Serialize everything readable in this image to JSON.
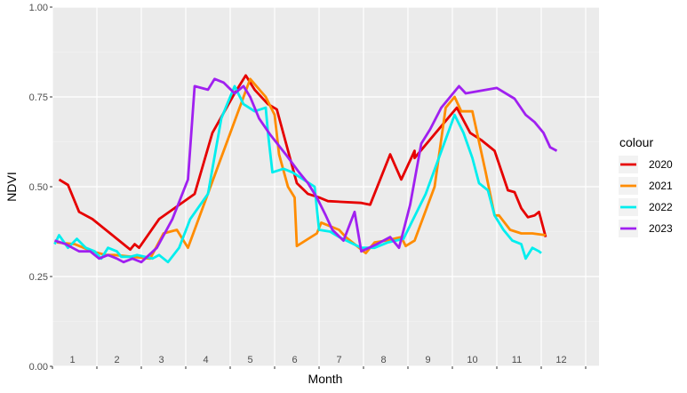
{
  "chart_data": {
    "type": "line",
    "xlabel": "Month",
    "ylabel": "NDVI",
    "ylim": [
      0,
      1
    ],
    "xlim": [
      0,
      12.3
    ],
    "y_ticks": [
      "0.00",
      "0.25",
      "0.50",
      "0.75",
      "1.00"
    ],
    "y_tick_values": [
      0,
      0.25,
      0.5,
      0.75,
      1.0
    ],
    "month_labels": [
      "1",
      "2",
      "3",
      "4",
      "5",
      "6",
      "7",
      "8",
      "9",
      "10",
      "11",
      "12"
    ],
    "grid": true,
    "legend": {
      "title": "colour",
      "position": "right"
    },
    "series": [
      {
        "name": "2020",
        "color": "#e60000",
        "points": [
          [
            0.15,
            0.52
          ],
          [
            0.35,
            0.505
          ],
          [
            0.6,
            0.43
          ],
          [
            0.9,
            0.41
          ],
          [
            1.3,
            0.37
          ],
          [
            1.6,
            0.34
          ],
          [
            1.75,
            0.325
          ],
          [
            1.85,
            0.34
          ],
          [
            1.95,
            0.33
          ],
          [
            2.4,
            0.41
          ],
          [
            3.2,
            0.48
          ],
          [
            3.6,
            0.65
          ],
          [
            4.1,
            0.76
          ],
          [
            4.35,
            0.81
          ],
          [
            4.55,
            0.77
          ],
          [
            4.85,
            0.73
          ],
          [
            5.05,
            0.715
          ],
          [
            5.5,
            0.51
          ],
          [
            5.75,
            0.48
          ],
          [
            6.0,
            0.47
          ],
          [
            6.2,
            0.46
          ],
          [
            6.95,
            0.455
          ],
          [
            7.15,
            0.45
          ],
          [
            7.6,
            0.59
          ],
          [
            7.85,
            0.52
          ],
          [
            8.15,
            0.6
          ],
          [
            8.15,
            0.58
          ],
          [
            9.1,
            0.72
          ],
          [
            9.4,
            0.65
          ],
          [
            9.65,
            0.63
          ],
          [
            9.95,
            0.6
          ],
          [
            10.25,
            0.49
          ],
          [
            10.4,
            0.485
          ],
          [
            10.55,
            0.44
          ],
          [
            10.7,
            0.415
          ],
          [
            10.85,
            0.42
          ],
          [
            10.95,
            0.43
          ],
          [
            11.1,
            0.36
          ]
        ]
      },
      {
        "name": "2021",
        "color": "#ff8c00",
        "points": [
          [
            0.1,
            0.345
          ],
          [
            0.5,
            0.34
          ],
          [
            0.9,
            0.32
          ],
          [
            1.2,
            0.31
          ],
          [
            1.4,
            0.31
          ],
          [
            2.2,
            0.3
          ],
          [
            2.5,
            0.37
          ],
          [
            2.8,
            0.38
          ],
          [
            3.05,
            0.33
          ],
          [
            4.45,
            0.8
          ],
          [
            4.8,
            0.75
          ],
          [
            5.0,
            0.7
          ],
          [
            5.1,
            0.59
          ],
          [
            5.3,
            0.5
          ],
          [
            5.45,
            0.47
          ],
          [
            5.5,
            0.335
          ],
          [
            5.95,
            0.37
          ],
          [
            6.05,
            0.4
          ],
          [
            6.45,
            0.38
          ],
          [
            6.6,
            0.36
          ],
          [
            6.8,
            0.34
          ],
          [
            7.05,
            0.315
          ],
          [
            7.25,
            0.345
          ],
          [
            7.5,
            0.35
          ],
          [
            7.85,
            0.36
          ],
          [
            7.95,
            0.335
          ],
          [
            8.15,
            0.35
          ],
          [
            8.6,
            0.5
          ],
          [
            8.85,
            0.72
          ],
          [
            9.05,
            0.75
          ],
          [
            9.2,
            0.71
          ],
          [
            9.45,
            0.71
          ],
          [
            9.75,
            0.54
          ],
          [
            9.95,
            0.42
          ],
          [
            10.05,
            0.42
          ],
          [
            10.3,
            0.38
          ],
          [
            10.55,
            0.37
          ],
          [
            10.8,
            0.37
          ],
          [
            11.1,
            0.365
          ]
        ]
      },
      {
        "name": "2022",
        "color": "#00eeee",
        "points": [
          [
            0.05,
            0.34
          ],
          [
            0.15,
            0.365
          ],
          [
            0.35,
            0.33
          ],
          [
            0.55,
            0.355
          ],
          [
            0.75,
            0.33
          ],
          [
            0.95,
            0.32
          ],
          [
            1.1,
            0.3
          ],
          [
            1.25,
            0.33
          ],
          [
            1.45,
            0.32
          ],
          [
            1.55,
            0.305
          ],
          [
            1.75,
            0.305
          ],
          [
            1.9,
            0.31
          ],
          [
            2.25,
            0.3
          ],
          [
            2.4,
            0.31
          ],
          [
            2.6,
            0.29
          ],
          [
            2.85,
            0.33
          ],
          [
            3.1,
            0.41
          ],
          [
            3.5,
            0.48
          ],
          [
            3.8,
            0.69
          ],
          [
            4.1,
            0.78
          ],
          [
            4.3,
            0.73
          ],
          [
            4.55,
            0.71
          ],
          [
            4.8,
            0.72
          ],
          [
            4.85,
            0.65
          ],
          [
            4.95,
            0.54
          ],
          [
            5.2,
            0.55
          ],
          [
            5.4,
            0.54
          ],
          [
            5.65,
            0.52
          ],
          [
            5.9,
            0.5
          ],
          [
            6.0,
            0.38
          ],
          [
            6.25,
            0.375
          ],
          [
            6.45,
            0.36
          ],
          [
            6.7,
            0.345
          ],
          [
            6.95,
            0.33
          ],
          [
            7.25,
            0.33
          ],
          [
            7.55,
            0.345
          ],
          [
            7.9,
            0.355
          ],
          [
            8.4,
            0.48
          ],
          [
            9.05,
            0.7
          ],
          [
            9.25,
            0.65
          ],
          [
            9.45,
            0.58
          ],
          [
            9.6,
            0.51
          ],
          [
            9.8,
            0.49
          ],
          [
            9.95,
            0.42
          ],
          [
            10.15,
            0.38
          ],
          [
            10.35,
            0.35
          ],
          [
            10.55,
            0.34
          ],
          [
            10.65,
            0.3
          ],
          [
            10.8,
            0.33
          ],
          [
            10.95,
            0.32
          ],
          [
            11.0,
            0.315
          ]
        ]
      },
      {
        "name": "2023",
        "color": "#a020f0",
        "points": [
          [
            0.05,
            0.35
          ],
          [
            0.3,
            0.34
          ],
          [
            0.6,
            0.32
          ],
          [
            0.85,
            0.32
          ],
          [
            1.05,
            0.3
          ],
          [
            1.25,
            0.31
          ],
          [
            1.45,
            0.3
          ],
          [
            1.6,
            0.29
          ],
          [
            1.8,
            0.3
          ],
          [
            2.0,
            0.29
          ],
          [
            2.35,
            0.33
          ],
          [
            2.7,
            0.41
          ],
          [
            3.05,
            0.52
          ],
          [
            3.2,
            0.78
          ],
          [
            3.5,
            0.77
          ],
          [
            3.65,
            0.8
          ],
          [
            3.85,
            0.79
          ],
          [
            4.1,
            0.76
          ],
          [
            4.3,
            0.78
          ],
          [
            4.45,
            0.75
          ],
          [
            4.65,
            0.69
          ],
          [
            4.9,
            0.645
          ],
          [
            5.25,
            0.59
          ],
          [
            5.55,
            0.54
          ],
          [
            5.75,
            0.51
          ],
          [
            5.95,
            0.47
          ],
          [
            6.15,
            0.42
          ],
          [
            6.3,
            0.38
          ],
          [
            6.55,
            0.35
          ],
          [
            6.8,
            0.43
          ],
          [
            6.95,
            0.32
          ],
          [
            7.3,
            0.34
          ],
          [
            7.6,
            0.36
          ],
          [
            7.8,
            0.33
          ],
          [
            8.05,
            0.45
          ],
          [
            8.3,
            0.62
          ],
          [
            8.5,
            0.66
          ],
          [
            8.75,
            0.72
          ],
          [
            8.95,
            0.75
          ],
          [
            9.15,
            0.78
          ],
          [
            9.3,
            0.76
          ],
          [
            10.0,
            0.775
          ],
          [
            10.4,
            0.745
          ],
          [
            10.65,
            0.7
          ],
          [
            10.85,
            0.68
          ],
          [
            11.05,
            0.65
          ],
          [
            11.2,
            0.61
          ],
          [
            11.35,
            0.6
          ]
        ]
      }
    ]
  }
}
